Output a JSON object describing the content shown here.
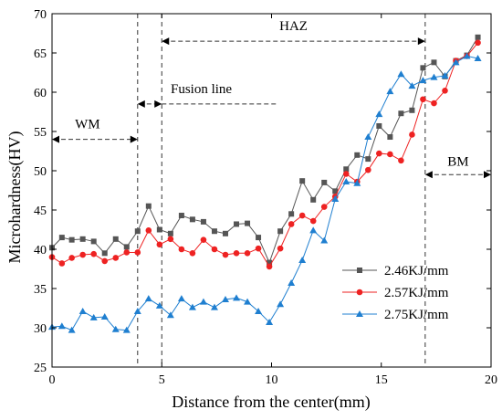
{
  "chart_data": {
    "type": "line",
    "xlabel": "Distance from the center(mm)",
    "ylabel": "Microhardness(HV)",
    "xlim": [
      0,
      20
    ],
    "ylim": [
      25,
      70
    ],
    "xticks": [
      0,
      5,
      10,
      15,
      20
    ],
    "yticks": [
      25,
      30,
      35,
      40,
      45,
      50,
      55,
      60,
      65,
      70
    ],
    "grid": false,
    "legend_position": "bottom-right",
    "regions": [
      {
        "label": "WM",
        "from": 0,
        "to": 3.9,
        "y": 54
      },
      {
        "label": "Fusion line",
        "from": 3.9,
        "to": 5.0,
        "y": 58.5
      },
      {
        "label": "HAZ",
        "from": 5.0,
        "to": 17.0,
        "y": 66.5
      },
      {
        "label": "BM",
        "from": 17.0,
        "to": 20.0,
        "y": 49.5
      }
    ],
    "boundaries_x": [
      3.9,
      5.0,
      17.0
    ],
    "series": [
      {
        "name": "2.46KJ/mm",
        "color": "#555555",
        "marker": "square",
        "x": [
          0,
          0.45,
          0.9,
          1.4,
          1.9,
          2.4,
          2.9,
          3.4,
          3.9,
          4.4,
          4.9,
          5.4,
          5.9,
          6.4,
          6.9,
          7.4,
          7.9,
          8.4,
          8.9,
          9.4,
          9.9,
          10.4,
          10.9,
          11.4,
          11.9,
          12.4,
          12.9,
          13.4,
          13.9,
          14.4,
          14.9,
          15.4,
          15.9,
          16.4,
          16.9,
          17.4,
          17.9,
          18.4,
          18.9,
          19.4
        ],
        "y": [
          40.2,
          41.5,
          41.2,
          41.3,
          41.0,
          39.5,
          41.3,
          40.3,
          42.3,
          45.5,
          42.5,
          42.0,
          44.3,
          43.8,
          43.5,
          42.3,
          42.0,
          43.2,
          43.3,
          41.5,
          38.3,
          42.3,
          44.5,
          48.7,
          46.3,
          48.5,
          47.4,
          50.2,
          52.0,
          51.5,
          55.7,
          54.3,
          57.3,
          57.7,
          63.1,
          63.8,
          62.0,
          64.0,
          64.7,
          67.0
        ]
      },
      {
        "name": "2.57KJ/mm",
        "color": "#ee2222",
        "marker": "circle",
        "x": [
          0,
          0.45,
          0.9,
          1.4,
          1.9,
          2.4,
          2.9,
          3.4,
          3.9,
          4.4,
          4.9,
          5.4,
          5.9,
          6.4,
          6.9,
          7.4,
          7.9,
          8.4,
          8.9,
          9.4,
          9.9,
          10.4,
          10.9,
          11.4,
          11.9,
          12.4,
          12.9,
          13.4,
          13.9,
          14.4,
          14.9,
          15.4,
          15.9,
          16.4,
          16.9,
          17.4,
          17.9,
          18.4,
          18.9,
          19.4
        ],
        "y": [
          39.0,
          38.2,
          38.9,
          39.3,
          39.4,
          38.5,
          38.9,
          39.6,
          39.6,
          42.4,
          40.6,
          41.3,
          40.0,
          39.5,
          41.2,
          40.0,
          39.3,
          39.5,
          39.5,
          40.1,
          37.8,
          40.1,
          43.2,
          44.3,
          43.6,
          45.4,
          46.7,
          49.6,
          48.6,
          50.1,
          52.2,
          52.1,
          51.3,
          54.6,
          59.1,
          58.6,
          60.2,
          64.0,
          64.6,
          66.3
        ]
      },
      {
        "name": "2.75KJ/mm",
        "color": "#1f7fd0",
        "marker": "triangle",
        "x": [
          0,
          0.45,
          0.9,
          1.4,
          1.9,
          2.4,
          2.9,
          3.4,
          3.9,
          4.4,
          4.9,
          5.4,
          5.9,
          6.4,
          6.9,
          7.4,
          7.9,
          8.4,
          8.9,
          9.4,
          9.9,
          10.4,
          10.9,
          11.4,
          11.9,
          12.4,
          12.9,
          13.4,
          13.9,
          14.4,
          14.9,
          15.4,
          15.9,
          16.4,
          16.9,
          17.4,
          17.9,
          18.4,
          18.9,
          19.4
        ],
        "y": [
          30.1,
          30.2,
          29.7,
          32.1,
          31.3,
          31.4,
          29.8,
          29.7,
          32.1,
          33.7,
          32.8,
          31.6,
          33.7,
          32.6,
          33.3,
          32.6,
          33.6,
          33.8,
          33.3,
          32.1,
          30.7,
          33.0,
          35.7,
          38.6,
          42.4,
          41.1,
          46.4,
          48.6,
          48.4,
          54.3,
          57.2,
          60.1,
          62.3,
          60.8,
          61.5,
          61.9,
          62.1,
          63.8,
          64.6,
          64.3
        ]
      }
    ]
  }
}
